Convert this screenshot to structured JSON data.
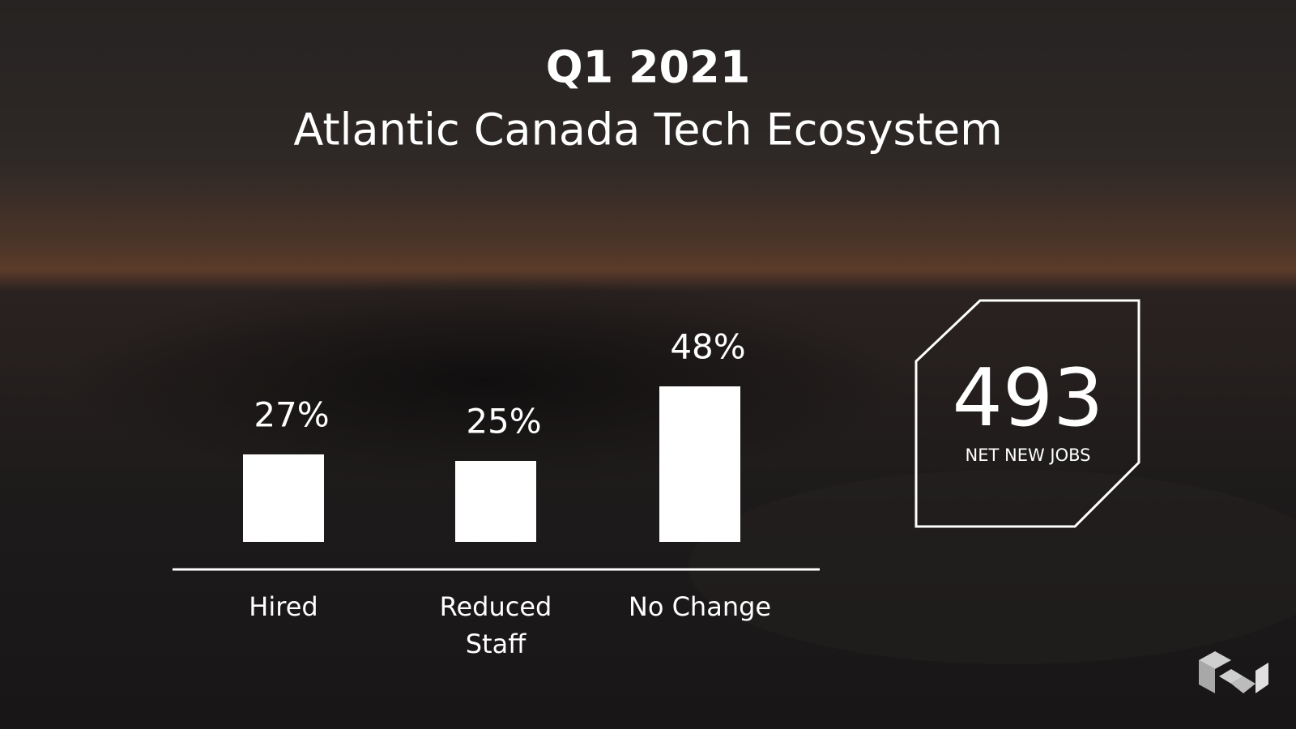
{
  "chart_data": {
    "type": "bar",
    "title": "Q1 2021",
    "subtitle": "Atlantic Canada Tech Ecosystem",
    "categories": [
      "Hired",
      "Reduced Staff",
      "No Change"
    ],
    "values": [
      27,
      25,
      48
    ],
    "value_labels": [
      "27%",
      "25%",
      "48%"
    ],
    "color": "#ffffff"
  },
  "callout": {
    "value": "493",
    "label": "NET NEW JOBS"
  }
}
